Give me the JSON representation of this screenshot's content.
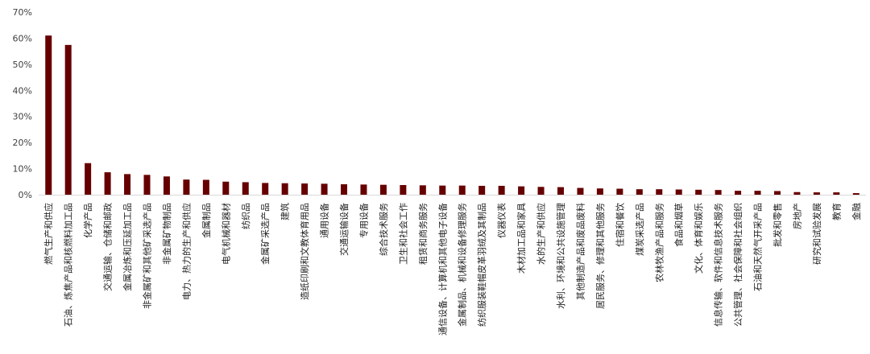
{
  "chart_data": {
    "type": "bar",
    "title": "",
    "xlabel": "",
    "ylabel": "",
    "ylim": [
      0,
      70
    ],
    "yticks": [
      "0%",
      "10%",
      "20%",
      "30%",
      "40%",
      "50%",
      "60%",
      "70%"
    ],
    "grid": false,
    "bar_color": "#660000",
    "categories": [
      "燃气生产和供应",
      "石油、炼焦产品和核燃料加工品",
      "化学产品",
      "交通运输、仓储和邮政",
      "金属冶炼和压延加工品",
      "非金属矿和其他矿采选产品",
      "非金属矿物制品",
      "电力、热力的生产和供应",
      "金属制品",
      "电气机械和器材",
      "纺织品",
      "金属矿采选产品",
      "建筑",
      "造纸印刷和文教体育用品",
      "通用设备",
      "交通运输设备",
      "专用设备",
      "综合技术服务",
      "卫生和社会工作",
      "租赁和商务服务",
      "通信设备、计算机和其他电子设备",
      "金属制品、机械和设备修理服务",
      "纺织服装鞋帽皮革羽绒及其制品",
      "仪器仪表",
      "木材加工品和家具",
      "水的生产和供应",
      "水利、环境和公共设施管理",
      "其他制造产品和废品废料",
      "居民服务、修理和其他服务",
      "住宿和餐饮",
      "煤炭采选产品",
      "农林牧渔产品和服务",
      "食品和烟草",
      "文化、体育和娱乐",
      "信息传输、软件和信息技术服务",
      "公共管理、社会保障和社会组织",
      "石油和天然气开采产品",
      "批发和零售",
      "房地产",
      "研究和试验发展",
      "教育",
      "金融"
    ],
    "values": [
      61.0,
      57.4,
      12.1,
      8.6,
      7.9,
      7.6,
      7.0,
      5.8,
      5.7,
      5.0,
      4.8,
      4.5,
      4.4,
      4.3,
      4.2,
      4.0,
      3.9,
      3.8,
      3.7,
      3.6,
      3.5,
      3.5,
      3.4,
      3.4,
      3.2,
      3.0,
      2.9,
      2.6,
      2.4,
      2.3,
      2.1,
      2.1,
      2.0,
      1.9,
      1.8,
      1.5,
      1.5,
      1.4,
      1.0,
      0.9,
      0.9,
      0.6
    ]
  }
}
